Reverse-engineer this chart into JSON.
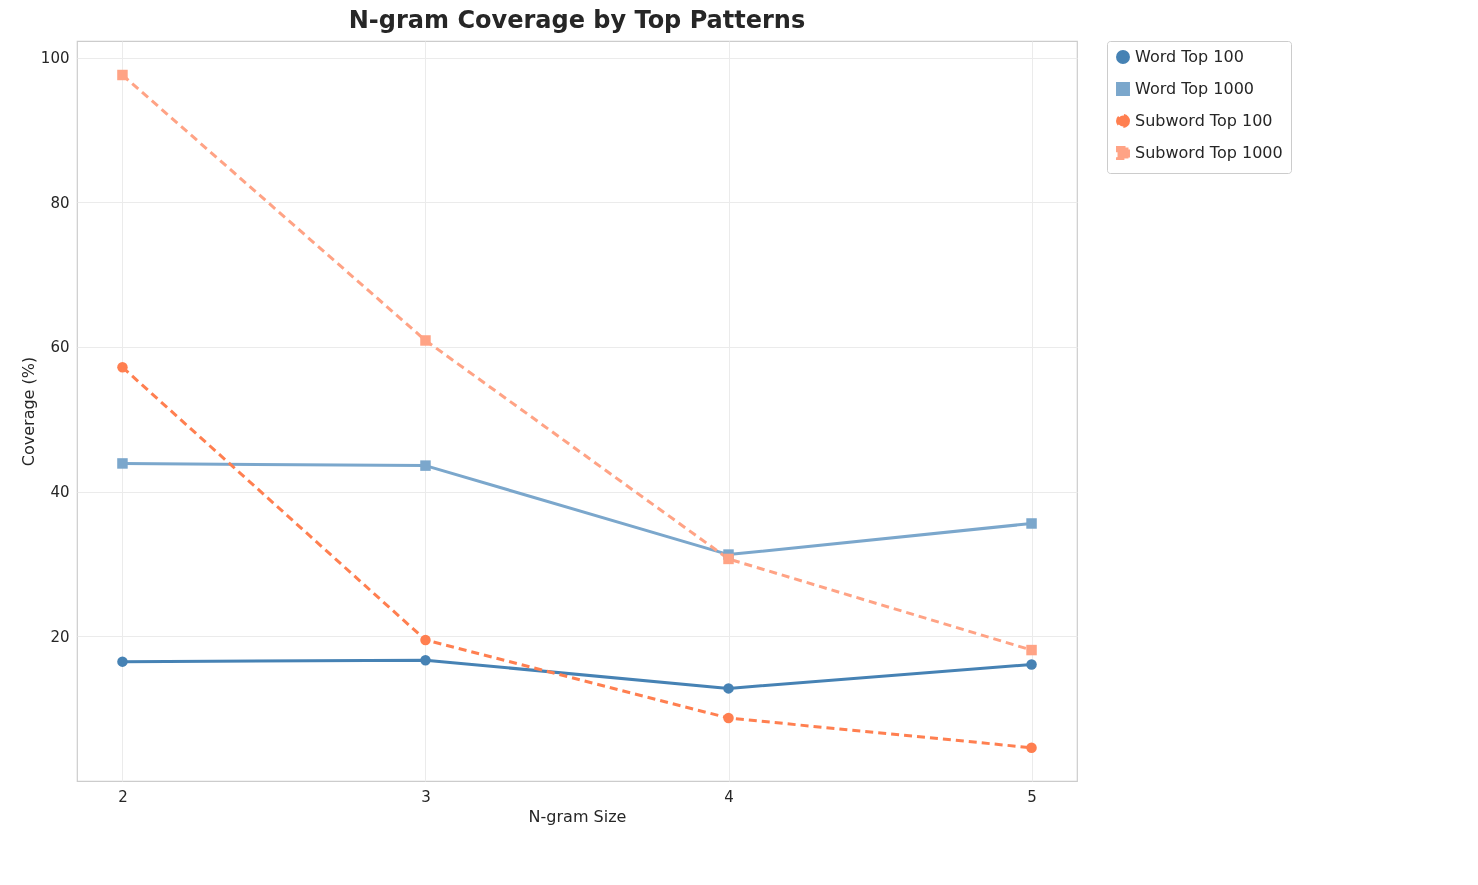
{
  "chart_data": {
    "type": "line",
    "title": "N-gram Coverage by Top Patterns",
    "xlabel": "N-gram Size",
    "ylabel": "Coverage (%)",
    "x": [
      2,
      3,
      4,
      5
    ],
    "series": [
      {
        "name": "Word Top 100",
        "color": "#4682b4",
        "marker": "circle",
        "line_style": "solid",
        "values": [
          16.5,
          16.7,
          12.8,
          16.1
        ]
      },
      {
        "name": "Word Top 1000",
        "color": "#7ba7cc",
        "marker": "square",
        "line_style": "solid",
        "values": [
          43.9,
          43.6,
          31.3,
          35.6
        ]
      },
      {
        "name": "Subword Top 100",
        "color": "#ff7f50",
        "marker": "circle",
        "line_style": "dashed",
        "values": [
          57.2,
          19.5,
          8.7,
          4.6
        ]
      },
      {
        "name": "Subword Top 1000",
        "color": "#ffa385",
        "marker": "square",
        "line_style": "dashed",
        "values": [
          97.6,
          60.9,
          30.7,
          18.1
        ]
      }
    ],
    "xlim": [
      1.85,
      5.15
    ],
    "ylim": [
      0,
      102.3
    ],
    "xticks": [
      2,
      3,
      4,
      5
    ],
    "yticks": [
      20,
      40,
      60,
      80,
      100
    ],
    "grid": true,
    "legend": "top right"
  }
}
